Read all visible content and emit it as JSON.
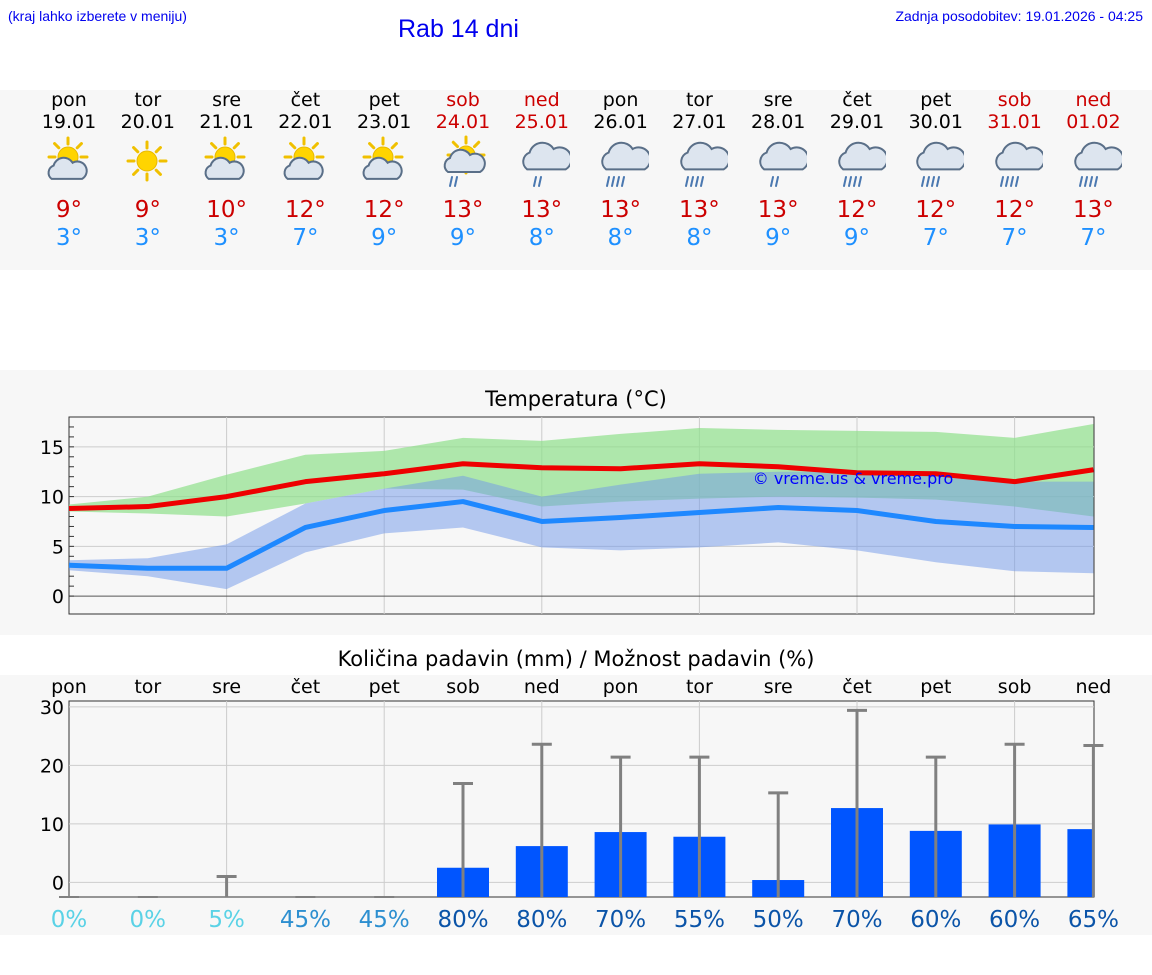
{
  "header": {
    "location_hint": "(kraj lahko izberete v meniju)",
    "title": "Rab 14 dni",
    "updated": "Zadnja posodobitev: 19.01.2026 - 04:25"
  },
  "colors": {
    "max": "#cc0000",
    "min": "#1e90ff",
    "bar": "#0055ff",
    "link": "#0000ee"
  },
  "days": [
    {
      "name": "pon",
      "date": "19.01",
      "weekend": false,
      "icon": "sun-cloud-icon",
      "max": "9°",
      "min": "3°",
      "precip_chance": "0%"
    },
    {
      "name": "tor",
      "date": "20.01",
      "weekend": false,
      "icon": "sun-icon",
      "max": "9°",
      "min": "3°",
      "precip_chance": "0%"
    },
    {
      "name": "sre",
      "date": "21.01",
      "weekend": false,
      "icon": "sun-cloud-icon",
      "max": "10°",
      "min": "3°",
      "precip_chance": "5%"
    },
    {
      "name": "čet",
      "date": "22.01",
      "weekend": false,
      "icon": "sun-cloud-icon",
      "max": "12°",
      "min": "7°",
      "precip_chance": "45%"
    },
    {
      "name": "pet",
      "date": "23.01",
      "weekend": false,
      "icon": "sun-cloud-icon",
      "max": "12°",
      "min": "9°",
      "precip_chance": "45%"
    },
    {
      "name": "sob",
      "date": "24.01",
      "weekend": true,
      "icon": "sun-cloud-rain-icon",
      "max": "13°",
      "min": "9°",
      "precip_chance": "80%"
    },
    {
      "name": "ned",
      "date": "25.01",
      "weekend": true,
      "icon": "cloud-rain-icon",
      "max": "13°",
      "min": "8°",
      "precip_chance": "80%"
    },
    {
      "name": "pon",
      "date": "26.01",
      "weekend": false,
      "icon": "cloud-heavy-rain-icon",
      "max": "13°",
      "min": "8°",
      "precip_chance": "70%"
    },
    {
      "name": "tor",
      "date": "27.01",
      "weekend": false,
      "icon": "cloud-heavy-rain-icon",
      "max": "13°",
      "min": "8°",
      "precip_chance": "55%"
    },
    {
      "name": "sre",
      "date": "28.01",
      "weekend": false,
      "icon": "cloud-rain-icon",
      "max": "13°",
      "min": "9°",
      "precip_chance": "50%"
    },
    {
      "name": "čet",
      "date": "29.01",
      "weekend": false,
      "icon": "cloud-heavy-rain-icon",
      "max": "12°",
      "min": "9°",
      "precip_chance": "70%"
    },
    {
      "name": "pet",
      "date": "30.01",
      "weekend": false,
      "icon": "cloud-heavy-rain-icon",
      "max": "12°",
      "min": "7°",
      "precip_chance": "60%"
    },
    {
      "name": "sob",
      "date": "31.01",
      "weekend": true,
      "icon": "cloud-heavy-rain-icon",
      "max": "12°",
      "min": "7°",
      "precip_chance": "60%"
    },
    {
      "name": "ned",
      "date": "01.02",
      "weekend": true,
      "icon": "cloud-heavy-rain-icon",
      "max": "13°",
      "min": "7°",
      "precip_chance": "65%"
    }
  ],
  "chart_data": [
    {
      "type": "line",
      "title": "Temperatura (°C)",
      "xlabel": "",
      "ylabel": "",
      "ylim": [
        -1.8,
        18
      ],
      "yticks": [
        0,
        5,
        10,
        15
      ],
      "grid": true,
      "watermark": "© vreme.us & vreme.pro",
      "x": [
        0,
        1,
        2,
        3,
        4,
        5,
        6,
        7,
        8,
        9,
        10,
        11,
        12,
        13
      ],
      "series": [
        {
          "name": "max",
          "values": [
            8.8,
            9.0,
            10.0,
            11.5,
            12.3,
            13.3,
            12.9,
            12.8,
            13.3,
            13.0,
            12.4,
            12.3,
            11.5,
            12.7
          ]
        },
        {
          "name": "min",
          "values": [
            3.1,
            2.8,
            2.8,
            6.9,
            8.6,
            9.5,
            7.5,
            7.9,
            8.4,
            8.9,
            8.6,
            7.5,
            7.0,
            6.9
          ]
        }
      ],
      "bands": [
        {
          "name": "max-range",
          "upper": [
            9.2,
            10.0,
            12.2,
            14.2,
            14.6,
            15.9,
            15.6,
            16.3,
            16.9,
            16.7,
            16.6,
            16.5,
            15.9,
            17.3
          ],
          "lower": [
            8.5,
            8.3,
            8.0,
            9.3,
            10.8,
            10.7,
            9.0,
            9.5,
            9.8,
            10.0,
            9.9,
            9.7,
            9.0,
            8.0
          ]
        },
        {
          "name": "min-range",
          "upper": [
            3.6,
            3.8,
            5.2,
            9.3,
            10.8,
            12.1,
            10.0,
            11.2,
            12.3,
            12.5,
            12.5,
            12.3,
            11.5,
            11.5
          ],
          "lower": [
            2.6,
            2.0,
            0.7,
            4.4,
            6.3,
            6.9,
            4.9,
            4.6,
            4.9,
            5.4,
            4.6,
            3.4,
            2.5,
            2.3
          ]
        }
      ]
    },
    {
      "type": "bar",
      "title": "Količina padavin (mm) / Možnost padavin (%)",
      "xlabel": "",
      "ylabel": "",
      "ylim": [
        -2.5,
        31
      ],
      "yticks": [
        0,
        10,
        20,
        30
      ],
      "grid": true,
      "categories": [
        "pon",
        "tor",
        "sre",
        "čet",
        "pet",
        "sob",
        "ned",
        "pon",
        "tor",
        "sre",
        "čet",
        "pet",
        "sob",
        "ned"
      ],
      "values": [
        0,
        0,
        0,
        0,
        0,
        2.5,
        6.2,
        8.6,
        7.8,
        0.4,
        12.7,
        8.8,
        9.9,
        9.1
      ],
      "error_max": [
        0,
        0,
        1.0,
        0,
        0,
        16.9,
        23.6,
        21.4,
        21.4,
        15.3,
        29.4,
        21.4,
        23.6,
        23.4
      ],
      "chance": [
        "0%",
        "0%",
        "5%",
        "45%",
        "45%",
        "80%",
        "80%",
        "70%",
        "55%",
        "50%",
        "70%",
        "60%",
        "60%",
        "65%"
      ],
      "chance_colors": [
        "#5ad2e6",
        "#5ad2e6",
        "#5ad2e6",
        "#2d8fd0",
        "#2d8fd0",
        "#0b54a8",
        "#0b54a8",
        "#0b54a8",
        "#0b54a8",
        "#0b54a8",
        "#0b54a8",
        "#0b54a8",
        "#0b54a8",
        "#0b54a8"
      ]
    }
  ]
}
